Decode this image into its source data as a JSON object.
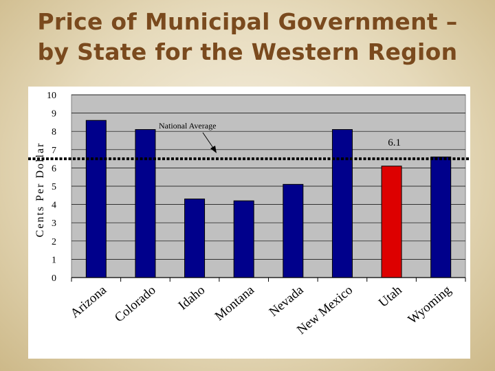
{
  "slide": {
    "title_line1": "Price of Municipal Government –",
    "title_line2": "by State for the Western Region"
  },
  "chart_data": {
    "type": "bar",
    "title": "Price of Municipal Government – by State for the Western Region",
    "ylabel": "Cents Per Dollar",
    "xlabel": "",
    "ylim": [
      0,
      10
    ],
    "yticks": [
      0,
      1,
      2,
      3,
      4,
      5,
      6,
      7,
      8,
      9,
      10
    ],
    "grid": true,
    "categories": [
      "Arizona",
      "Colorado",
      "Idaho",
      "Montana",
      "Nevada",
      "New Mexico",
      "Utah",
      "Wyoming"
    ],
    "values": [
      8.6,
      8.1,
      4.3,
      4.2,
      5.1,
      8.1,
      6.1,
      6.6
    ],
    "bar_colors": [
      "#00008b",
      "#00008b",
      "#00008b",
      "#00008b",
      "#00008b",
      "#00008b",
      "#dd0000",
      "#00008b"
    ],
    "reference_line": {
      "label": "National Average",
      "value": 6.5
    },
    "data_labels": [
      {
        "category": "Utah",
        "text": "6.1"
      }
    ],
    "colors": {
      "bar": "#00008b",
      "highlight": "#dd0000",
      "plot_bg": "#c0c0c0",
      "title": "#7a4a1e"
    }
  }
}
